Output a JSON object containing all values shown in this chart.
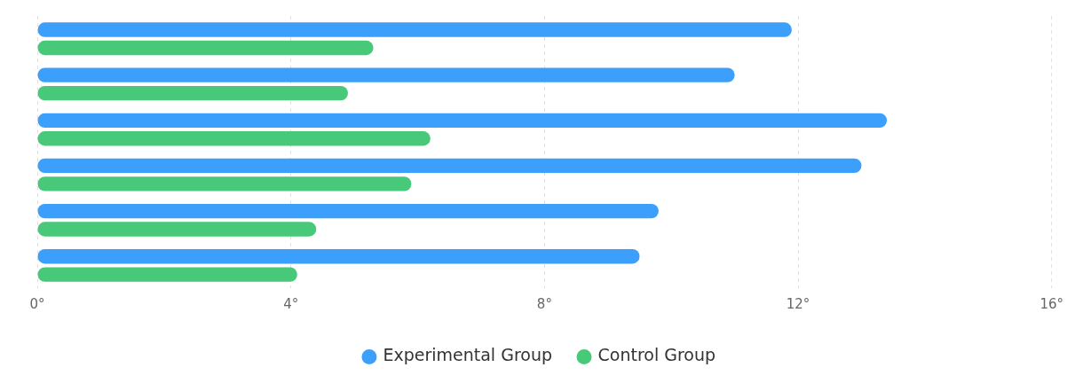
{
  "chart_data": {
    "type": "bar",
    "orientation": "horizontal",
    "categories": [
      null,
      null,
      null,
      null,
      null,
      null
    ],
    "series": [
      {
        "name": "Experimental Group",
        "color": "#3c9ffc",
        "values": [
          11.9,
          11.0,
          13.4,
          13.0,
          9.8,
          9.5
        ]
      },
      {
        "name": "Control Group",
        "color": "#48c97a",
        "values": [
          5.3,
          4.9,
          6.2,
          5.9,
          4.4,
          4.1
        ]
      }
    ],
    "xlim": [
      0,
      16
    ],
    "xticks": [
      {
        "value": 0,
        "label": "0°"
      },
      {
        "value": 4,
        "label": "4°"
      },
      {
        "value": 8,
        "label": "8°"
      },
      {
        "value": 12,
        "label": "12°"
      },
      {
        "value": 16,
        "label": "16°"
      }
    ],
    "grid": "x",
    "legend": "bottom"
  }
}
